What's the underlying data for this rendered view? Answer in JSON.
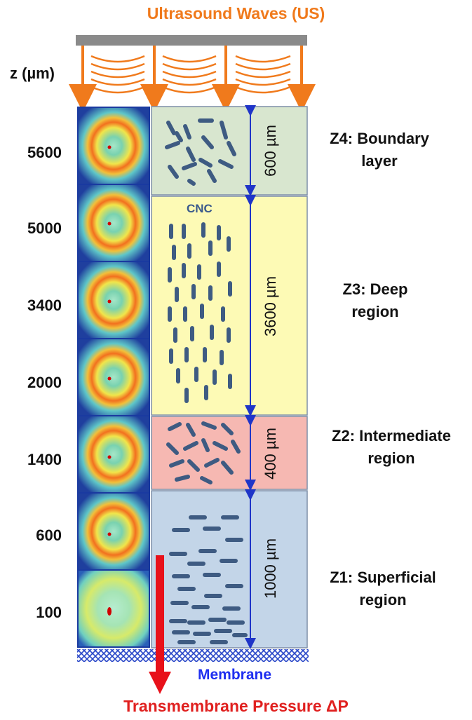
{
  "title": "Ultrasound Waves (US)",
  "z_axis_label": "z (µm)",
  "z_values": [
    "5600",
    "5000",
    "3400",
    "2000",
    "1400",
    "600",
    "100"
  ],
  "cnc_label": "CNC",
  "regions": [
    {
      "id": "z4",
      "name": "Z4: Boundary\nlayer",
      "thickness": "600 µm",
      "color": "#d8e6cf"
    },
    {
      "id": "z3",
      "name": "Z3: Deep\nregion",
      "thickness": "3600 µm",
      "color": "#fdfab5"
    },
    {
      "id": "z2",
      "name": "Z2: Intermediate\nregion",
      "thickness": "400 µm",
      "color": "#f6b8b2"
    },
    {
      "id": "z1",
      "name": "Z1: Superficial\nregion",
      "thickness": "1000 µm",
      "color": "#c3d5e8"
    }
  ],
  "membrane_label": "Membrane",
  "pressure_label": "Transmembrane Pressure ΔP",
  "colors": {
    "title": "#f07a1c",
    "arrow": "#f07a1c",
    "rod": "#3e5b82",
    "dim_arrow": "#1f35c8",
    "pressure_arrow": "#e8111a",
    "membrane_text": "#1f2ff0"
  }
}
